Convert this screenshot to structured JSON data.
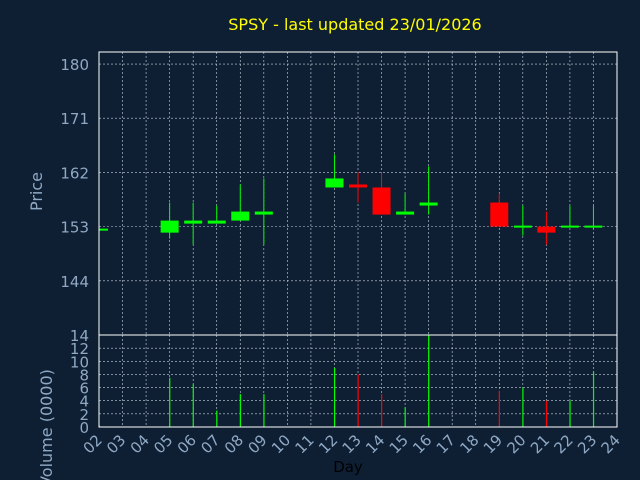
{
  "title": "SPSY - last updated 23/01/2026",
  "colors": {
    "background": "#0f1f33",
    "frame": "#ffffff",
    "grid": "#c8d2dc",
    "title": "#ffff00",
    "axis_label": "#8fa9c4",
    "tick_label": "#8fa9c4",
    "up": "#00ff00",
    "down": "#ff0000"
  },
  "chart_data": [
    {
      "type": "candlestick",
      "ylabel": "Price",
      "ylim": [
        135,
        182
      ],
      "yticks": [
        144,
        153,
        162,
        171,
        180
      ],
      "grid": true,
      "x": [
        "02",
        "03",
        "04",
        "05",
        "06",
        "07",
        "08",
        "09",
        "10",
        "11",
        "12",
        "13",
        "14",
        "15",
        "16",
        "17",
        "18",
        "19",
        "20",
        "21",
        "22",
        "23",
        "24"
      ],
      "candles": [
        {
          "day": "02",
          "open": 152.5,
          "close": 152.5,
          "high": 153.0,
          "low": 152.2
        },
        {
          "day": "05",
          "open": 152.0,
          "close": 154.0,
          "high": 157.0,
          "low": 151.0
        },
        {
          "day": "06",
          "open": 153.5,
          "close": 154.0,
          "high": 157.0,
          "low": 150.0
        },
        {
          "day": "07",
          "open": 153.5,
          "close": 154.0,
          "high": 156.5,
          "low": 153.5
        },
        {
          "day": "08",
          "open": 154.0,
          "close": 155.5,
          "high": 160.0,
          "low": 154.0
        },
        {
          "day": "09",
          "open": 155.0,
          "close": 155.5,
          "high": 161.0,
          "low": 150.0
        },
        {
          "day": "12",
          "open": 159.5,
          "close": 161.0,
          "high": 165.0,
          "low": 159.5
        },
        {
          "day": "13",
          "open": 160.0,
          "close": 159.5,
          "high": 162.0,
          "low": 157.0
        },
        {
          "day": "14",
          "open": 159.5,
          "close": 155.0,
          "high": 162.0,
          "low": 155.0
        },
        {
          "day": "15",
          "open": 155.0,
          "close": 155.5,
          "high": 158.5,
          "low": 155.0
        },
        {
          "day": "16",
          "open": 156.5,
          "close": 157.0,
          "high": 163.0,
          "low": 155.0
        },
        {
          "day": "19",
          "open": 157.0,
          "close": 153.0,
          "high": 158.5,
          "low": 153.0
        },
        {
          "day": "20",
          "open": 153.0,
          "close": 153.0,
          "high": 156.5,
          "low": 151.5
        },
        {
          "day": "21",
          "open": 153.0,
          "close": 152.0,
          "high": 155.5,
          "low": 150.0
        },
        {
          "day": "22",
          "open": 153.0,
          "close": 153.0,
          "high": 156.5,
          "low": 153.0
        },
        {
          "day": "23",
          "open": 152.8,
          "close": 153.0,
          "high": 156.5,
          "low": 152.5
        }
      ]
    },
    {
      "type": "bar",
      "xlabel": "Day",
      "ylabel": "Volume (0000)",
      "ylim": [
        0,
        14
      ],
      "yticks": [
        0,
        2,
        4,
        6,
        8,
        10,
        12,
        14
      ],
      "grid": true,
      "x": [
        "02",
        "03",
        "04",
        "05",
        "06",
        "07",
        "08",
        "09",
        "10",
        "11",
        "12",
        "13",
        "14",
        "15",
        "16",
        "17",
        "18",
        "19",
        "20",
        "21",
        "22",
        "23",
        "24"
      ],
      "bars": [
        {
          "day": "02",
          "value": 0.3,
          "dir": "up"
        },
        {
          "day": "05",
          "value": 7.5,
          "dir": "up"
        },
        {
          "day": "06",
          "value": 6.5,
          "dir": "up"
        },
        {
          "day": "07",
          "value": 2.5,
          "dir": "up"
        },
        {
          "day": "08",
          "value": 5.0,
          "dir": "up"
        },
        {
          "day": "09",
          "value": 5.0,
          "dir": "up"
        },
        {
          "day": "12",
          "value": 9.0,
          "dir": "up"
        },
        {
          "day": "13",
          "value": 8.0,
          "dir": "down"
        },
        {
          "day": "14",
          "value": 5.0,
          "dir": "down"
        },
        {
          "day": "15",
          "value": 3.0,
          "dir": "up"
        },
        {
          "day": "16",
          "value": 14.0,
          "dir": "up"
        },
        {
          "day": "19",
          "value": 5.5,
          "dir": "down"
        },
        {
          "day": "20",
          "value": 6.0,
          "dir": "up"
        },
        {
          "day": "21",
          "value": 4.0,
          "dir": "down"
        },
        {
          "day": "22",
          "value": 4.0,
          "dir": "up"
        },
        {
          "day": "23",
          "value": 8.5,
          "dir": "up"
        }
      ]
    }
  ]
}
